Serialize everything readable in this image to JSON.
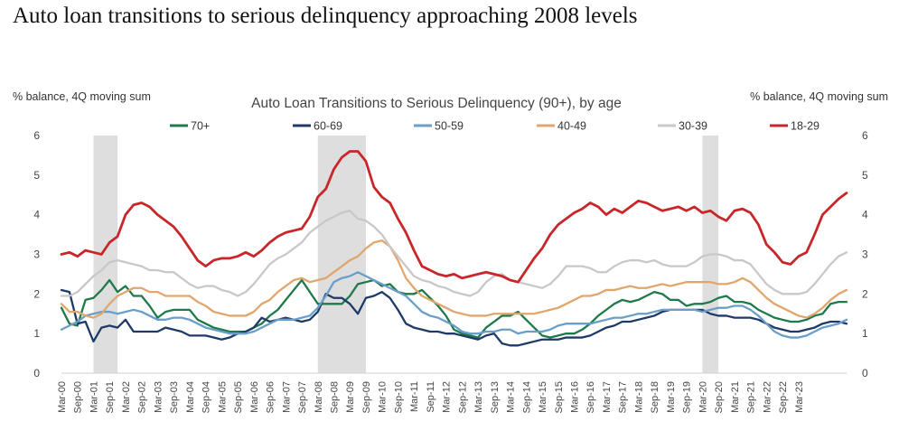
{
  "headline": "Auto loan transitions to serious delinquency approaching 2008 levels",
  "chart_data": {
    "type": "line",
    "title": "Auto Loan Transitions to Serious Delinquency (90+), by age",
    "ylabel_left": "% balance, 4Q moving sum",
    "ylabel_right": "% balance, 4Q moving sum",
    "ylim": [
      0,
      6
    ],
    "yticks": [
      0,
      1,
      2,
      3,
      4,
      5,
      6
    ],
    "grid": false,
    "legend_position": "top",
    "x_start": "2000Q1",
    "x_tick_labels": [
      "Mar-00",
      "Sep-00",
      "Mar-01",
      "Sep-01",
      "Mar-02",
      "Sep-02",
      "Mar-03",
      "Sep-03",
      "Mar-04",
      "Sep-04",
      "Mar-05",
      "Sep-05",
      "Mar-06",
      "Sep-06",
      "Mar-07",
      "Sep-07",
      "Mar-08",
      "Sep-08",
      "Mar-09",
      "Sep-09",
      "Mar-10",
      "Sep-10",
      "Mar-11",
      "Sep-11",
      "Mar-12",
      "Sep-12",
      "Mar-13",
      "Sep-13",
      "Mar-14",
      "Sep-14",
      "Mar-15",
      "Sep-15",
      "Mar-16",
      "Sep-16",
      "Mar-17",
      "Sep-17",
      "Mar-18",
      "Sep-18",
      "Mar-19",
      "Sep-19",
      "Mar-20",
      "Sep-20",
      "Mar-21",
      "Sep-21",
      "Mar-22",
      "Sep-22",
      "Mar-23"
    ],
    "recessions": [
      {
        "start_quarter_index": 4,
        "end_quarter_index": 7
      },
      {
        "start_quarter_index": 32,
        "end_quarter_index": 38
      },
      {
        "start_quarter_index": 80,
        "end_quarter_index": 82
      }
    ],
    "series": [
      {
        "name": "70+",
        "color": "#1e7a4a",
        "values": [
          1.65,
          1.25,
          1.2,
          1.85,
          1.9,
          2.1,
          2.35,
          2.05,
          2.2,
          1.95,
          1.95,
          1.7,
          1.4,
          1.55,
          1.6,
          1.6,
          1.6,
          1.35,
          1.25,
          1.15,
          1.1,
          1.05,
          1.05,
          1.05,
          1.15,
          1.25,
          1.45,
          1.6,
          1.85,
          2.1,
          2.35,
          2.05,
          1.75,
          1.75,
          1.75,
          1.75,
          1.95,
          2.25,
          2.3,
          2.35,
          2.2,
          2.25,
          2.05,
          2.0,
          2.0,
          2.1,
          1.9,
          1.7,
          1.45,
          1.1,
          1.0,
          0.95,
          0.9,
          1.15,
          1.3,
          1.45,
          1.45,
          1.55,
          1.35,
          1.15,
          0.95,
          0.9,
          0.95,
          1.0,
          1.0,
          1.1,
          1.25,
          1.45,
          1.6,
          1.75,
          1.85,
          1.8,
          1.85,
          1.95,
          2.05,
          2.0,
          1.85,
          1.85,
          1.7,
          1.75,
          1.75,
          1.8,
          1.9,
          1.95,
          1.8,
          1.8,
          1.75,
          1.6,
          1.5,
          1.4,
          1.35,
          1.3,
          1.3,
          1.35,
          1.45,
          1.5,
          1.75,
          1.8,
          1.8
        ]
      },
      {
        "name": "60-69",
        "color": "#1f3a68",
        "values": [
          2.1,
          2.05,
          1.25,
          1.3,
          0.8,
          1.15,
          1.2,
          1.15,
          1.35,
          1.05,
          1.05,
          1.05,
          1.05,
          1.15,
          1.1,
          1.05,
          0.95,
          0.95,
          0.95,
          0.9,
          0.85,
          0.9,
          1.0,
          1.05,
          1.15,
          1.4,
          1.3,
          1.35,
          1.4,
          1.35,
          1.3,
          1.35,
          1.55,
          2.0,
          1.9,
          1.9,
          1.75,
          1.5,
          1.9,
          1.95,
          2.05,
          1.9,
          1.6,
          1.25,
          1.15,
          1.1,
          1.05,
          1.05,
          1.0,
          1.0,
          0.95,
          0.9,
          0.85,
          0.95,
          1.0,
          0.75,
          0.7,
          0.7,
          0.75,
          0.8,
          0.85,
          0.85,
          0.85,
          0.9,
          0.9,
          0.9,
          0.95,
          1.05,
          1.15,
          1.2,
          1.3,
          1.3,
          1.35,
          1.4,
          1.45,
          1.55,
          1.6,
          1.6,
          1.6,
          1.6,
          1.6,
          1.5,
          1.45,
          1.45,
          1.4,
          1.4,
          1.4,
          1.35,
          1.25,
          1.15,
          1.1,
          1.05,
          1.05,
          1.1,
          1.15,
          1.25,
          1.3,
          1.3,
          1.25
        ]
      },
      {
        "name": "50-59",
        "color": "#6a9ec9",
        "values": [
          1.1,
          1.2,
          1.3,
          1.45,
          1.5,
          1.55,
          1.55,
          1.5,
          1.55,
          1.6,
          1.55,
          1.45,
          1.35,
          1.35,
          1.4,
          1.4,
          1.35,
          1.25,
          1.15,
          1.1,
          1.05,
          1.0,
          1.0,
          1.0,
          1.05,
          1.15,
          1.25,
          1.35,
          1.35,
          1.35,
          1.4,
          1.45,
          1.65,
          1.95,
          2.3,
          2.4,
          2.45,
          2.55,
          2.45,
          2.35,
          2.25,
          2.15,
          2.05,
          1.95,
          1.75,
          1.55,
          1.45,
          1.4,
          1.3,
          1.2,
          1.05,
          1.0,
          1.0,
          1.05,
          1.05,
          1.1,
          1.1,
          1.0,
          1.05,
          1.05,
          1.05,
          1.1,
          1.2,
          1.25,
          1.25,
          1.25,
          1.25,
          1.3,
          1.35,
          1.4,
          1.4,
          1.45,
          1.5,
          1.5,
          1.55,
          1.6,
          1.6,
          1.6,
          1.6,
          1.6,
          1.55,
          1.6,
          1.65,
          1.65,
          1.7,
          1.7,
          1.6,
          1.45,
          1.25,
          1.05,
          0.95,
          0.9,
          0.9,
          0.95,
          1.05,
          1.15,
          1.2,
          1.25,
          1.35
        ]
      },
      {
        "name": "40-49",
        "color": "#e0a66c",
        "values": [
          1.75,
          1.55,
          1.55,
          1.45,
          1.4,
          1.5,
          1.75,
          1.95,
          2.05,
          2.15,
          2.15,
          2.05,
          2.05,
          1.95,
          1.95,
          1.95,
          1.95,
          1.8,
          1.7,
          1.55,
          1.5,
          1.45,
          1.45,
          1.45,
          1.55,
          1.75,
          1.85,
          2.05,
          2.2,
          2.35,
          2.4,
          2.3,
          2.35,
          2.4,
          2.55,
          2.7,
          2.85,
          2.95,
          3.15,
          3.3,
          3.35,
          3.2,
          2.85,
          2.4,
          2.15,
          1.95,
          1.85,
          1.75,
          1.65,
          1.55,
          1.5,
          1.45,
          1.45,
          1.45,
          1.5,
          1.5,
          1.5,
          1.5,
          1.5,
          1.5,
          1.55,
          1.6,
          1.65,
          1.75,
          1.85,
          1.95,
          1.95,
          2.0,
          2.1,
          2.1,
          2.15,
          2.2,
          2.15,
          2.15,
          2.2,
          2.25,
          2.2,
          2.25,
          2.3,
          2.3,
          2.3,
          2.3,
          2.25,
          2.25,
          2.3,
          2.4,
          2.3,
          2.1,
          1.9,
          1.75,
          1.65,
          1.55,
          1.45,
          1.4,
          1.5,
          1.65,
          1.85,
          2.0,
          2.1
        ]
      },
      {
        "name": "30-39",
        "color": "#c8c8c8",
        "values": [
          1.95,
          1.95,
          2.05,
          2.25,
          2.45,
          2.6,
          2.8,
          2.85,
          2.8,
          2.75,
          2.7,
          2.6,
          2.6,
          2.55,
          2.55,
          2.4,
          2.25,
          2.15,
          2.2,
          2.2,
          2.1,
          2.05,
          1.95,
          2.05,
          2.25,
          2.5,
          2.75,
          2.9,
          3.0,
          3.15,
          3.3,
          3.55,
          3.7,
          3.85,
          3.95,
          4.05,
          4.1,
          3.9,
          3.85,
          3.7,
          3.5,
          3.2,
          2.95,
          2.7,
          2.45,
          2.35,
          2.3,
          2.2,
          2.15,
          2.05,
          2.0,
          1.95,
          2.05,
          2.3,
          2.45,
          2.5,
          2.35,
          2.3,
          2.25,
          2.2,
          2.15,
          2.25,
          2.45,
          2.7,
          2.7,
          2.7,
          2.65,
          2.55,
          2.55,
          2.7,
          2.8,
          2.85,
          2.85,
          2.8,
          2.85,
          2.75,
          2.7,
          2.7,
          2.7,
          2.8,
          2.95,
          3.0,
          3.0,
          2.95,
          2.85,
          2.85,
          2.75,
          2.5,
          2.25,
          2.1,
          2.0,
          2.0,
          2.0,
          2.05,
          2.25,
          2.5,
          2.75,
          2.95,
          3.05
        ]
      },
      {
        "name": "18-29",
        "color": "#c9262a",
        "values": [
          3.0,
          3.05,
          2.95,
          3.1,
          3.05,
          3.0,
          3.3,
          3.45,
          4.0,
          4.25,
          4.3,
          4.2,
          4.0,
          3.85,
          3.7,
          3.45,
          3.15,
          2.85,
          2.7,
          2.85,
          2.9,
          2.9,
          2.95,
          3.05,
          2.95,
          3.1,
          3.3,
          3.45,
          3.55,
          3.6,
          3.65,
          3.95,
          4.45,
          4.65,
          5.15,
          5.45,
          5.6,
          5.6,
          5.35,
          4.7,
          4.45,
          4.3,
          3.9,
          3.55,
          3.1,
          2.7,
          2.6,
          2.5,
          2.45,
          2.5,
          2.4,
          2.45,
          2.5,
          2.55,
          2.5,
          2.45,
          2.35,
          2.3,
          2.6,
          2.9,
          3.15,
          3.5,
          3.75,
          3.9,
          4.05,
          4.15,
          4.3,
          4.2,
          4.0,
          4.15,
          4.05,
          4.2,
          4.35,
          4.3,
          4.2,
          4.1,
          4.15,
          4.2,
          4.1,
          4.2,
          4.05,
          4.1,
          3.95,
          3.85,
          4.1,
          4.15,
          4.05,
          3.75,
          3.25,
          3.05,
          2.8,
          2.75,
          2.95,
          3.05,
          3.5,
          4.0,
          4.2,
          4.4,
          4.55
        ]
      }
    ]
  }
}
